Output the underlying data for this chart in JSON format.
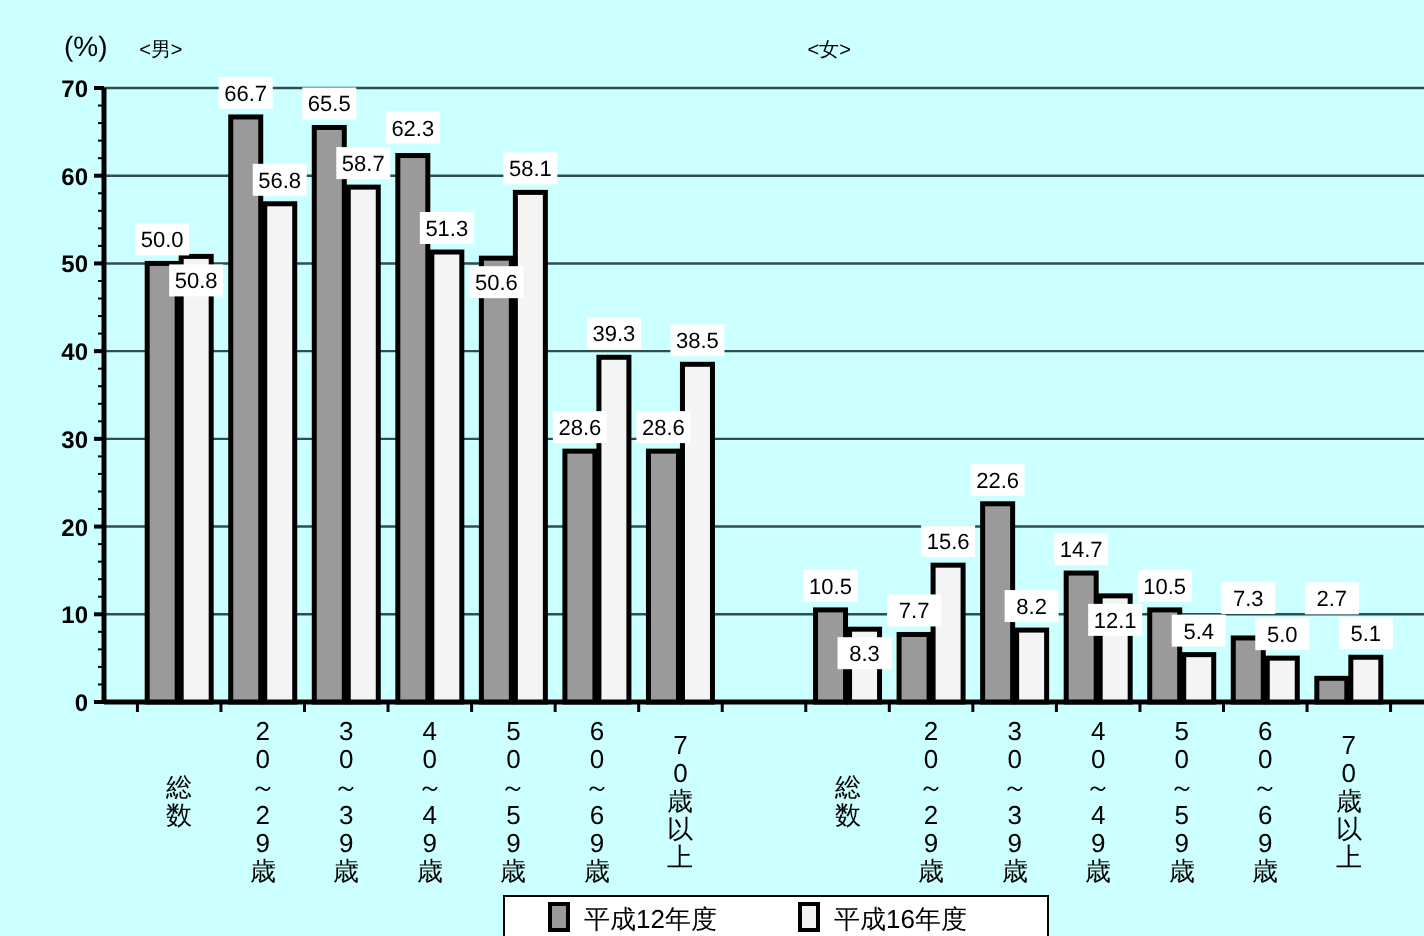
{
  "chart_data": {
    "type": "bar",
    "ylabel": "(%)",
    "categories": [
      "総数",
      "20～29歳",
      "30～39歳",
      "40～49歳",
      "50～59歳",
      "60～69歳",
      "70歳以上",
      null,
      "総数",
      "20～29歳",
      "30～39歳",
      "40～49歳",
      "50～59歳",
      "60～69歳",
      "70歳以上"
    ],
    "series": [
      {
        "name": "平成12年度",
        "color": "#9a9a9a",
        "values": [
          50.0,
          66.7,
          65.5,
          62.3,
          50.6,
          28.6,
          28.6,
          null,
          10.5,
          7.7,
          22.6,
          14.7,
          10.5,
          7.3,
          2.7
        ],
        "value_labels": [
          "50.0",
          "66.7",
          "65.5",
          "62.3",
          "50.6",
          "28.6",
          "28.6",
          null,
          "10.5",
          "7.7",
          "22.6",
          "14.7",
          "10.5",
          "7.3",
          "2.7"
        ]
      },
      {
        "name": "平成16年度",
        "color": "#f4f4f4",
        "values": [
          50.8,
          56.8,
          58.7,
          51.3,
          58.1,
          39.3,
          38.5,
          null,
          8.3,
          15.6,
          8.2,
          12.1,
          5.4,
          5.0,
          5.1
        ],
        "value_labels": [
          "50.8",
          "56.8",
          "58.7",
          "51.3",
          "58.1",
          "39.3",
          "38.5",
          null,
          "8.3",
          "15.6",
          "8.2",
          "12.1",
          "5.4",
          "5.0",
          "5.1"
        ]
      }
    ],
    "ylim": [
      0,
      70
    ],
    "yticks": [
      0,
      10,
      20,
      30,
      40,
      50,
      60,
      70
    ],
    "grid": "y",
    "legend": "bottom",
    "annotations": [
      "<男>",
      "<女>"
    ]
  }
}
